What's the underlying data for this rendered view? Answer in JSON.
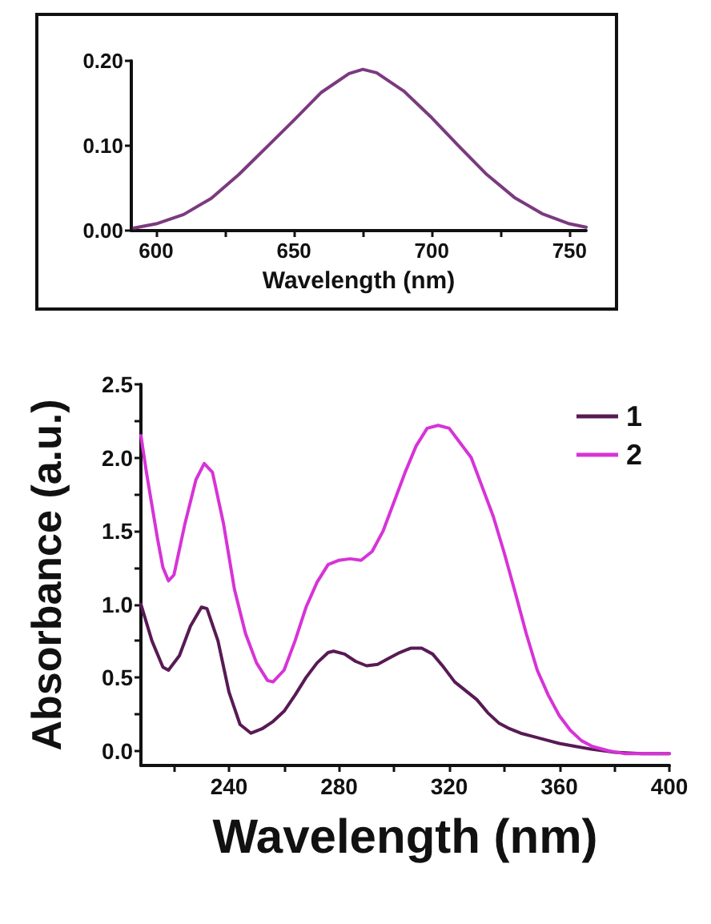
{
  "chart_data": [
    {
      "type": "line",
      "xlabel": "Wavelength (nm)",
      "xlim": [
        591,
        756
      ],
      "xticks": [
        {
          "value": 600,
          "label": "600"
        },
        {
          "value": 625,
          "label": null
        },
        {
          "value": 650,
          "label": "650"
        },
        {
          "value": 675,
          "label": null
        },
        {
          "value": 700,
          "label": "700"
        },
        {
          "value": 725,
          "label": null
        },
        {
          "value": 750,
          "label": "750"
        }
      ],
      "ylim": [
        0,
        0.2
      ],
      "yticks": [
        {
          "value": 0,
          "label": "0.00"
        },
        {
          "value": 0.1,
          "label": "0.10"
        },
        {
          "value": 0.2,
          "label": "0.20"
        }
      ],
      "grid": false,
      "legend": false,
      "marker": "none",
      "line_style": "solid",
      "x": [
        592,
        600,
        610,
        620,
        630,
        640,
        650,
        660,
        670,
        675,
        680,
        690,
        700,
        710,
        720,
        730,
        740,
        750,
        756
      ],
      "series": [
        {
          "color": "#7b3a7f",
          "values": [
            0.003,
            0.008,
            0.019,
            0.038,
            0.066,
            0.098,
            0.13,
            0.163,
            0.185,
            0.19,
            0.186,
            0.164,
            0.133,
            0.099,
            0.066,
            0.039,
            0.02,
            0.008,
            0.004
          ]
        }
      ]
    },
    {
      "type": "line",
      "xlabel": "Wavelength (nm)",
      "ylabel": "Absorbance (a.u.)",
      "xlim": [
        208,
        400
      ],
      "xticks": [
        {
          "value": 220,
          "label": null
        },
        {
          "value": 240,
          "label": "240"
        },
        {
          "value": 260,
          "label": null
        },
        {
          "value": 280,
          "label": "280"
        },
        {
          "value": 300,
          "label": null
        },
        {
          "value": 320,
          "label": "320"
        },
        {
          "value": 340,
          "label": null
        },
        {
          "value": 360,
          "label": "360"
        },
        {
          "value": 380,
          "label": null
        },
        {
          "value": 400,
          "label": "400"
        }
      ],
      "ylim": [
        -0.1,
        2.5
      ],
      "yticks": [
        {
          "value": 0,
          "label": "0.0"
        },
        {
          "value": 0.25,
          "label": null
        },
        {
          "value": 0.5,
          "label": "0.5"
        },
        {
          "value": 0.75,
          "label": null
        },
        {
          "value": 1,
          "label": "1.0"
        },
        {
          "value": 1.25,
          "label": null
        },
        {
          "value": 1.5,
          "label": "1.5"
        },
        {
          "value": 1.75,
          "label": null
        },
        {
          "value": 2,
          "label": "2.0"
        },
        {
          "value": 2.25,
          "label": null
        },
        {
          "value": 2.5,
          "label": "2.5"
        }
      ],
      "grid": false,
      "legend": "top right",
      "marker": "none",
      "line_style": "solid",
      "series": [
        {
          "name": "1",
          "color": "#581a55",
          "x": [
            208,
            212,
            216,
            218,
            222,
            226,
            230,
            232,
            236,
            240,
            244,
            248,
            252,
            256,
            260,
            264,
            268,
            272,
            276,
            278,
            282,
            286,
            290,
            294,
            298,
            302,
            306,
            310,
            314,
            318,
            322,
            326,
            330,
            334,
            338,
            342,
            346,
            350,
            356,
            360,
            366,
            372,
            380,
            390,
            400
          ],
          "values": [
            1.0,
            0.75,
            0.57,
            0.55,
            0.65,
            0.85,
            0.98,
            0.97,
            0.75,
            0.4,
            0.18,
            0.12,
            0.15,
            0.2,
            0.27,
            0.38,
            0.5,
            0.6,
            0.67,
            0.68,
            0.66,
            0.61,
            0.58,
            0.59,
            0.63,
            0.67,
            0.7,
            0.7,
            0.66,
            0.57,
            0.47,
            0.41,
            0.35,
            0.26,
            0.19,
            0.15,
            0.12,
            0.1,
            0.07,
            0.05,
            0.03,
            0.01,
            -0.01,
            -0.02,
            -0.02
          ]
        },
        {
          "name": "2",
          "color": "#d733d7",
          "x": [
            208,
            210,
            214,
            216,
            218,
            220,
            224,
            228,
            231,
            234,
            238,
            242,
            246,
            250,
            254,
            256,
            260,
            264,
            268,
            272,
            276,
            280,
            284,
            288,
            292,
            296,
            300,
            304,
            308,
            312,
            316,
            320,
            324,
            328,
            332,
            336,
            340,
            344,
            348,
            352,
            356,
            360,
            364,
            368,
            372,
            378,
            384,
            392,
            400
          ],
          "values": [
            2.15,
            1.9,
            1.45,
            1.25,
            1.16,
            1.2,
            1.55,
            1.85,
            1.96,
            1.9,
            1.55,
            1.1,
            0.8,
            0.6,
            0.48,
            0.47,
            0.55,
            0.75,
            0.98,
            1.15,
            1.27,
            1.3,
            1.31,
            1.3,
            1.36,
            1.5,
            1.7,
            1.9,
            2.08,
            2.2,
            2.22,
            2.2,
            2.1,
            2.0,
            1.8,
            1.6,
            1.35,
            1.08,
            0.8,
            0.55,
            0.38,
            0.24,
            0.14,
            0.07,
            0.03,
            0.0,
            -0.02,
            -0.02,
            -0.02
          ]
        }
      ]
    }
  ]
}
